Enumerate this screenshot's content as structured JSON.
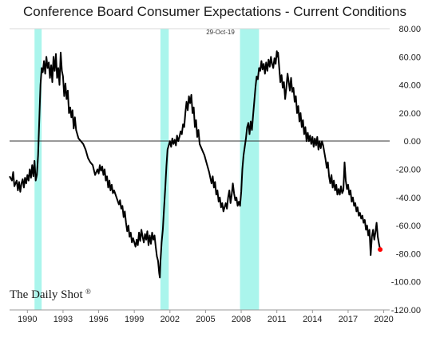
{
  "chart_data": {
    "type": "line",
    "title": "Conference Board Consumer Expectations - Current Conditions",
    "xlabel": "",
    "ylabel": "",
    "x_ticks": [
      "1990",
      "1993",
      "1996",
      "1999",
      "2002",
      "2005",
      "2008",
      "2011",
      "2014",
      "2017",
      "2020"
    ],
    "y_ticks": [
      "80.00",
      "60.00",
      "40.00",
      "20.00",
      "0.00",
      "-20.00",
      "-40.00",
      "-60.00",
      "-80.00",
      "-100.00",
      "-120.00"
    ],
    "xlim": [
      1988.5,
      2020.5
    ],
    "ylim": [
      -120,
      80
    ],
    "grid": true,
    "zero_line": true,
    "recessions": [
      {
        "start": 1990.6,
        "end": 1991.2
      },
      {
        "start": 2001.2,
        "end": 2001.9
      },
      {
        "start": 2007.9,
        "end": 2009.5
      }
    ],
    "annotation": "29-Oct-19",
    "watermark": "The Daily Shot",
    "last_point_color": "#ff0000",
    "line_color": "#000000",
    "recession_color": "#aaf5ec",
    "series": [
      {
        "values": [
          [
            1988.5,
            -25
          ],
          [
            1988.7,
            -28
          ],
          [
            1988.8,
            -22
          ],
          [
            1988.9,
            -32
          ],
          [
            1989.0,
            -30
          ],
          [
            1989.1,
            -28
          ],
          [
            1989.2,
            -35
          ],
          [
            1989.3,
            -29
          ],
          [
            1989.4,
            -36
          ],
          [
            1989.5,
            -30
          ],
          [
            1989.6,
            -27
          ],
          [
            1989.7,
            -33
          ],
          [
            1989.8,
            -26
          ],
          [
            1989.9,
            -30
          ],
          [
            1990.0,
            -24
          ],
          [
            1990.1,
            -28
          ],
          [
            1990.2,
            -20
          ],
          [
            1990.3,
            -26
          ],
          [
            1990.4,
            -17
          ],
          [
            1990.5,
            -25
          ],
          [
            1990.6,
            -14
          ],
          [
            1990.7,
            -28
          ],
          [
            1990.8,
            -24
          ],
          [
            1990.9,
            -10
          ],
          [
            1991.0,
            15
          ],
          [
            1991.1,
            40
          ],
          [
            1991.2,
            52
          ],
          [
            1991.3,
            49
          ],
          [
            1991.4,
            57
          ],
          [
            1991.5,
            48
          ],
          [
            1991.6,
            60
          ],
          [
            1991.7,
            52
          ],
          [
            1991.8,
            56
          ],
          [
            1991.9,
            45
          ],
          [
            1992.0,
            54
          ],
          [
            1992.1,
            42
          ],
          [
            1992.2,
            60
          ],
          [
            1992.3,
            50
          ],
          [
            1992.4,
            62
          ],
          [
            1992.5,
            45
          ],
          [
            1992.6,
            52
          ],
          [
            1992.7,
            40
          ],
          [
            1992.8,
            63
          ],
          [
            1992.9,
            50
          ],
          [
            1993.0,
            46
          ],
          [
            1993.1,
            32
          ],
          [
            1993.2,
            41
          ],
          [
            1993.3,
            30
          ],
          [
            1993.4,
            36
          ],
          [
            1993.5,
            20
          ],
          [
            1993.6,
            24
          ],
          [
            1993.7,
            17
          ],
          [
            1993.8,
            22
          ],
          [
            1993.9,
            9
          ],
          [
            1994.0,
            17
          ],
          [
            1994.1,
            8
          ],
          [
            1994.3,
            2
          ],
          [
            1994.5,
            0
          ],
          [
            1994.7,
            -2
          ],
          [
            1994.9,
            -6
          ],
          [
            1995.1,
            -12
          ],
          [
            1995.3,
            -15
          ],
          [
            1995.5,
            -17
          ],
          [
            1995.7,
            -24
          ],
          [
            1995.9,
            -20
          ],
          [
            1996.0,
            -23
          ],
          [
            1996.1,
            -17
          ],
          [
            1996.2,
            -21
          ],
          [
            1996.3,
            -18
          ],
          [
            1996.4,
            -24
          ],
          [
            1996.5,
            -20
          ],
          [
            1996.6,
            -28
          ],
          [
            1996.7,
            -25
          ],
          [
            1996.8,
            -33
          ],
          [
            1996.9,
            -28
          ],
          [
            1997.0,
            -35
          ],
          [
            1997.1,
            -31
          ],
          [
            1997.2,
            -37
          ],
          [
            1997.3,
            -35
          ],
          [
            1997.5,
            -40
          ],
          [
            1997.7,
            -45
          ],
          [
            1997.8,
            -42
          ],
          [
            1997.9,
            -48
          ],
          [
            1998.0,
            -46
          ],
          [
            1998.1,
            -54
          ],
          [
            1998.2,
            -50
          ],
          [
            1998.3,
            -58
          ],
          [
            1998.4,
            -64
          ],
          [
            1998.5,
            -60
          ],
          [
            1998.6,
            -68
          ],
          [
            1998.7,
            -65
          ],
          [
            1998.8,
            -72
          ],
          [
            1998.9,
            -69
          ],
          [
            1999.0,
            -72
          ],
          [
            1999.1,
            -75
          ],
          [
            1999.2,
            -70
          ],
          [
            1999.3,
            -74
          ],
          [
            1999.4,
            -65
          ],
          [
            1999.5,
            -71
          ],
          [
            1999.6,
            -63
          ],
          [
            1999.7,
            -68
          ],
          [
            1999.8,
            -72
          ],
          [
            1999.9,
            -66
          ],
          [
            2000.0,
            -70
          ],
          [
            2000.1,
            -64
          ],
          [
            2000.2,
            -74
          ],
          [
            2000.3,
            -67
          ],
          [
            2000.4,
            -73
          ],
          [
            2000.5,
            -65
          ],
          [
            2000.6,
            -70
          ],
          [
            2000.7,
            -67
          ],
          [
            2000.8,
            -75
          ],
          [
            2000.9,
            -82
          ],
          [
            2001.0,
            -85
          ],
          [
            2001.1,
            -94
          ],
          [
            2001.15,
            -97
          ],
          [
            2001.2,
            -86
          ],
          [
            2001.3,
            -72
          ],
          [
            2001.4,
            -63
          ],
          [
            2001.5,
            -48
          ],
          [
            2001.6,
            -34
          ],
          [
            2001.7,
            -18
          ],
          [
            2001.8,
            -6
          ],
          [
            2001.9,
            -3
          ],
          [
            2002.0,
            0
          ],
          [
            2002.1,
            -4
          ],
          [
            2002.2,
            2
          ],
          [
            2002.3,
            -2
          ],
          [
            2002.4,
            1
          ],
          [
            2002.5,
            -3
          ],
          [
            2002.6,
            4
          ],
          [
            2002.7,
            0
          ],
          [
            2002.8,
            3
          ],
          [
            2002.9,
            7
          ],
          [
            2003.0,
            5
          ],
          [
            2003.1,
            12
          ],
          [
            2003.2,
            10
          ],
          [
            2003.3,
            20
          ],
          [
            2003.4,
            28
          ],
          [
            2003.5,
            22
          ],
          [
            2003.6,
            32
          ],
          [
            2003.7,
            27
          ],
          [
            2003.8,
            33
          ],
          [
            2003.9,
            20
          ],
          [
            2004.0,
            24
          ],
          [
            2004.1,
            10
          ],
          [
            2004.2,
            15
          ],
          [
            2004.3,
            3
          ],
          [
            2004.4,
            8
          ],
          [
            2004.5,
            -2
          ],
          [
            2004.7,
            -6
          ],
          [
            2004.9,
            -10
          ],
          [
            2005.1,
            -16
          ],
          [
            2005.3,
            -22
          ],
          [
            2005.5,
            -30
          ],
          [
            2005.6,
            -25
          ],
          [
            2005.7,
            -33
          ],
          [
            2005.8,
            -29
          ],
          [
            2005.9,
            -38
          ],
          [
            2006.0,
            -35
          ],
          [
            2006.1,
            -43
          ],
          [
            2006.2,
            -40
          ],
          [
            2006.3,
            -47
          ],
          [
            2006.4,
            -44
          ],
          [
            2006.5,
            -50
          ],
          [
            2006.6,
            -47
          ],
          [
            2006.7,
            -44
          ],
          [
            2006.8,
            -48
          ],
          [
            2006.9,
            -40
          ],
          [
            2007.0,
            -35
          ],
          [
            2007.1,
            -44
          ],
          [
            2007.2,
            -38
          ],
          [
            2007.3,
            -30
          ],
          [
            2007.4,
            -37
          ],
          [
            2007.5,
            -42
          ],
          [
            2007.6,
            -40
          ],
          [
            2007.7,
            -46
          ],
          [
            2007.8,
            -43
          ],
          [
            2007.9,
            -46
          ],
          [
            2008.0,
            -36
          ],
          [
            2008.1,
            -20
          ],
          [
            2008.2,
            -10
          ],
          [
            2008.3,
            -4
          ],
          [
            2008.4,
            2
          ],
          [
            2008.5,
            10
          ],
          [
            2008.6,
            13
          ],
          [
            2008.7,
            5
          ],
          [
            2008.8,
            14
          ],
          [
            2008.9,
            8
          ],
          [
            2009.0,
            18
          ],
          [
            2009.1,
            28
          ],
          [
            2009.2,
            38
          ],
          [
            2009.3,
            46
          ],
          [
            2009.4,
            44
          ],
          [
            2009.5,
            52
          ],
          [
            2009.6,
            50
          ],
          [
            2009.7,
            57
          ],
          [
            2009.8,
            51
          ],
          [
            2009.9,
            55
          ],
          [
            2010.0,
            48
          ],
          [
            2010.1,
            56
          ],
          [
            2010.2,
            50
          ],
          [
            2010.3,
            58
          ],
          [
            2010.4,
            53
          ],
          [
            2010.5,
            60
          ],
          [
            2010.6,
            55
          ],
          [
            2010.7,
            52
          ],
          [
            2010.8,
            59
          ],
          [
            2010.9,
            55
          ],
          [
            2011.0,
            64
          ],
          [
            2011.05,
            60
          ],
          [
            2011.1,
            63
          ],
          [
            2011.2,
            52
          ],
          [
            2011.3,
            42
          ],
          [
            2011.4,
            47
          ],
          [
            2011.5,
            38
          ],
          [
            2011.6,
            42
          ],
          [
            2011.7,
            30
          ],
          [
            2011.8,
            38
          ],
          [
            2011.9,
            48
          ],
          [
            2012.0,
            42
          ],
          [
            2012.1,
            36
          ],
          [
            2012.2,
            45
          ],
          [
            2012.3,
            35
          ],
          [
            2012.4,
            38
          ],
          [
            2012.5,
            28
          ],
          [
            2012.6,
            32
          ],
          [
            2012.7,
            20
          ],
          [
            2012.8,
            25
          ],
          [
            2012.9,
            14
          ],
          [
            2013.0,
            20
          ],
          [
            2013.1,
            10
          ],
          [
            2013.2,
            15
          ],
          [
            2013.3,
            5
          ],
          [
            2013.4,
            10
          ],
          [
            2013.5,
            0
          ],
          [
            2013.6,
            6
          ],
          [
            2013.7,
            0
          ],
          [
            2013.8,
            4
          ],
          [
            2013.9,
            -2
          ],
          [
            2014.0,
            3
          ],
          [
            2014.1,
            -4
          ],
          [
            2014.2,
            2
          ],
          [
            2014.3,
            -3
          ],
          [
            2014.4,
            3
          ],
          [
            2014.5,
            -6
          ],
          [
            2014.6,
            0
          ],
          [
            2014.7,
            -5
          ],
          [
            2014.8,
            0
          ],
          [
            2014.9,
            -3
          ],
          [
            2015.0,
            -8
          ],
          [
            2015.1,
            -13
          ],
          [
            2015.2,
            -19
          ],
          [
            2015.3,
            -15
          ],
          [
            2015.4,
            -25
          ],
          [
            2015.5,
            -30
          ],
          [
            2015.6,
            -24
          ],
          [
            2015.7,
            -33
          ],
          [
            2015.8,
            -28
          ],
          [
            2015.9,
            -35
          ],
          [
            2016.0,
            -31
          ],
          [
            2016.1,
            -38
          ],
          [
            2016.2,
            -34
          ],
          [
            2016.3,
            -38
          ],
          [
            2016.4,
            -32
          ],
          [
            2016.5,
            -37
          ],
          [
            2016.6,
            -35
          ],
          [
            2016.7,
            -15
          ],
          [
            2016.8,
            -28
          ],
          [
            2016.9,
            -34
          ],
          [
            2017.0,
            -31
          ],
          [
            2017.1,
            -38
          ],
          [
            2017.2,
            -35
          ],
          [
            2017.3,
            -43
          ],
          [
            2017.4,
            -40
          ],
          [
            2017.5,
            -46
          ],
          [
            2017.6,
            -44
          ],
          [
            2017.7,
            -50
          ],
          [
            2017.8,
            -47
          ],
          [
            2017.9,
            -53
          ],
          [
            2018.0,
            -51
          ],
          [
            2018.1,
            -55
          ],
          [
            2018.2,
            -53
          ],
          [
            2018.3,
            -58
          ],
          [
            2018.4,
            -56
          ],
          [
            2018.5,
            -63
          ],
          [
            2018.6,
            -60
          ],
          [
            2018.7,
            -67
          ],
          [
            2018.8,
            -63
          ],
          [
            2018.9,
            -81
          ],
          [
            2019.0,
            -68
          ],
          [
            2019.1,
            -63
          ],
          [
            2019.2,
            -70
          ],
          [
            2019.3,
            -65
          ],
          [
            2019.4,
            -58
          ],
          [
            2019.5,
            -68
          ],
          [
            2019.6,
            -73
          ],
          [
            2019.7,
            -77
          ]
        ]
      }
    ]
  }
}
